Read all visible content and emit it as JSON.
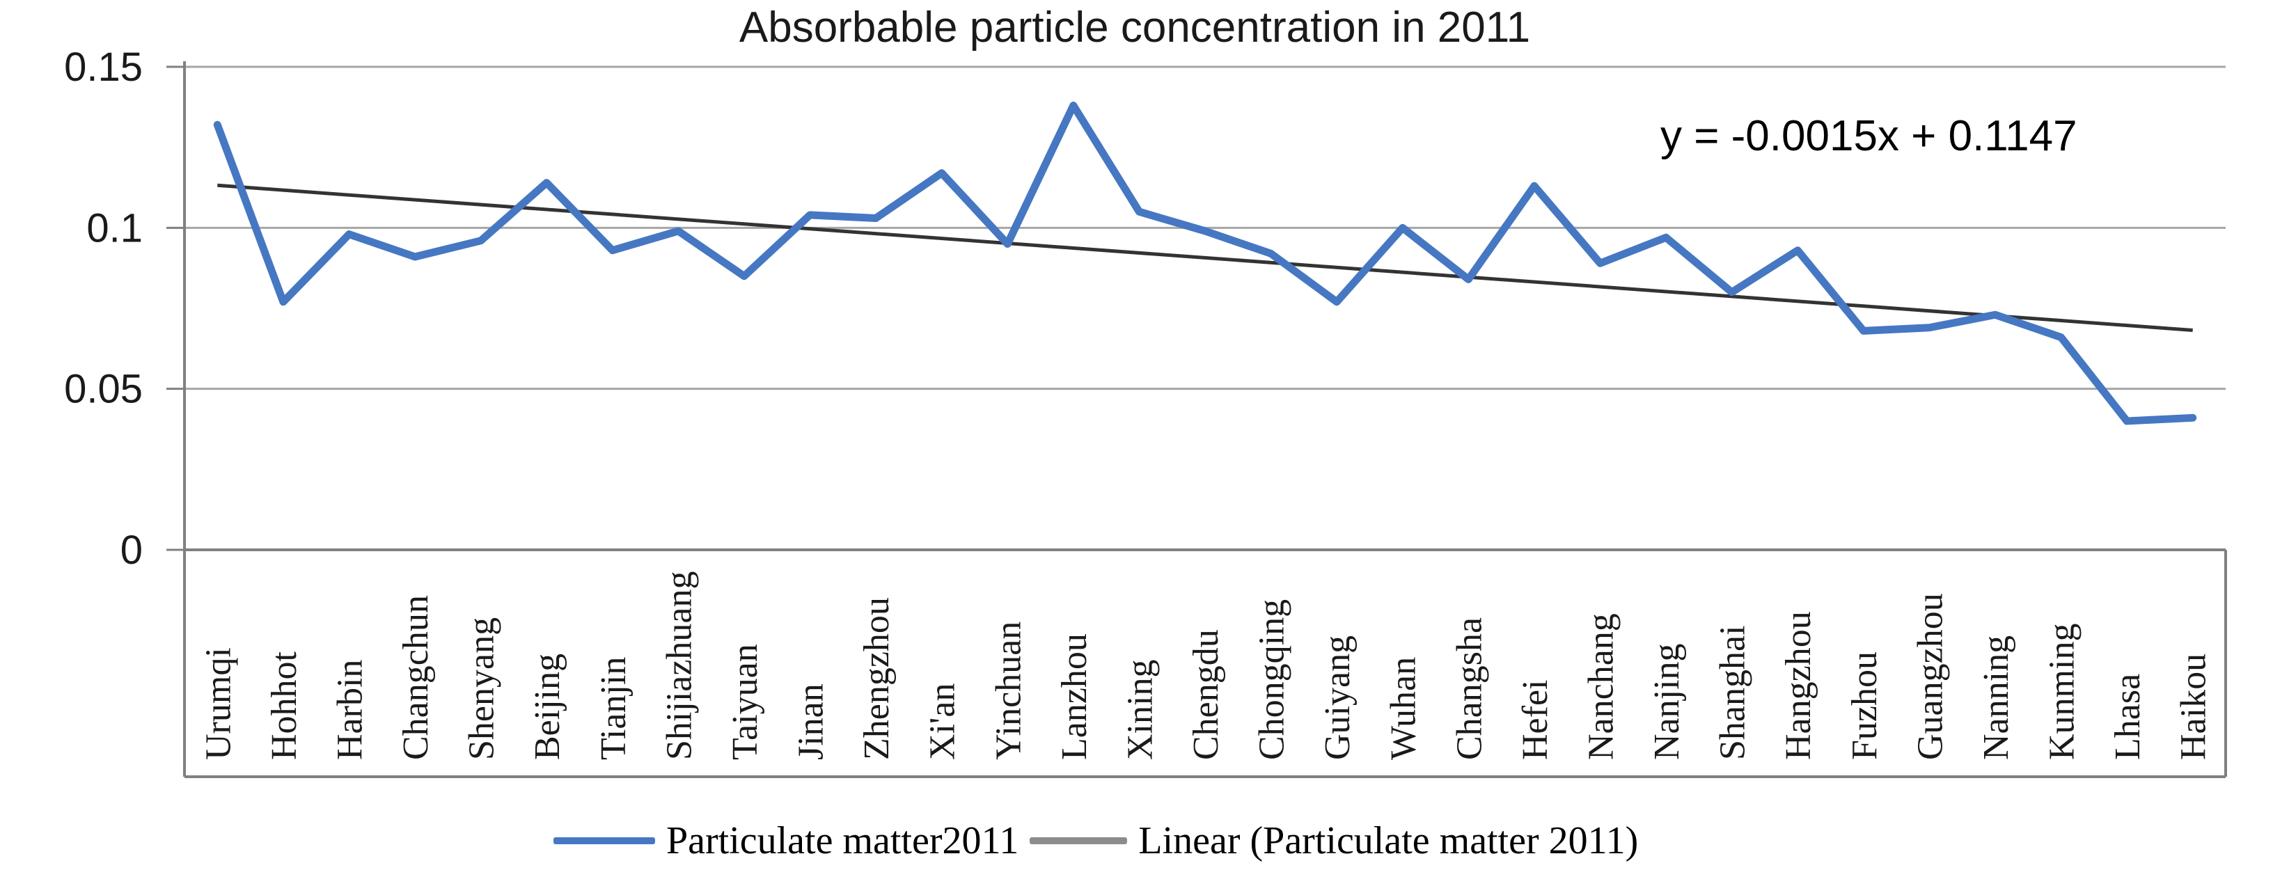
{
  "title": "Absorbable particle concentration in 2011",
  "trend_annotation": "y = -0.0015x + 0.1147",
  "legend": [
    {
      "label": "Particulate matter2011",
      "color": "#4677c2"
    },
    {
      "label": "Linear (Particulate matter 2011)",
      "color": "#8c8c8c"
    }
  ],
  "colors": {
    "series_line": "#4677c2",
    "trend_line": "#333333",
    "gridline": "#a6a6a6",
    "axis": "#808080",
    "text": "#1a1a1a",
    "background": "#ffffff"
  },
  "y_axis": {
    "tick_labels": [
      "0",
      "0.05",
      "0.1",
      "0.15"
    ],
    "tick_values": [
      0,
      0.05,
      0.1,
      0.15
    ]
  },
  "chart_data": {
    "type": "line",
    "title": "Absorbable particle concentration in 2011",
    "xlabel": "",
    "ylabel": "",
    "ylim": [
      0,
      0.15
    ],
    "yticks": [
      0,
      0.05,
      0.1,
      0.15
    ],
    "grid": true,
    "legend_position": "bottom",
    "annotation": "y = -0.0015x + 0.1147",
    "categories": [
      "Urumqi",
      "Hohhot",
      "Harbin",
      "Changchun",
      "Shenyang",
      "Beijing",
      "Tianjin",
      "Shijiazhuang",
      "Taiyuan",
      "Jinan",
      "Zhengzhou",
      "Xi'an",
      "Yinchuan",
      "Lanzhou",
      "Xining",
      "Chengdu",
      "Chongqing",
      "Guiyang",
      "Wuhan",
      "Changsha",
      "Hefei",
      "Nanchang",
      "Nanjing",
      "Shanghai",
      "Hangzhou",
      "Fuzhou",
      "Guangzhou",
      "Nanning",
      "Kunming",
      "Lhasa",
      "Haikou"
    ],
    "series": [
      {
        "name": "Particulate matter2011",
        "type": "line",
        "color": "#4677c2",
        "values": [
          0.132,
          0.077,
          0.098,
          0.091,
          0.096,
          0.114,
          0.093,
          0.099,
          0.085,
          0.104,
          0.103,
          0.117,
          0.095,
          0.138,
          0.105,
          0.099,
          0.092,
          0.077,
          0.1,
          0.084,
          0.113,
          0.089,
          0.097,
          0.08,
          0.093,
          0.068,
          0.069,
          0.073,
          0.066,
          0.04,
          0.041
        ]
      },
      {
        "name": "Linear (Particulate matter 2011)",
        "type": "trendline",
        "color": "#333333",
        "slope": -0.0015,
        "intercept": 0.1147
      }
    ]
  }
}
